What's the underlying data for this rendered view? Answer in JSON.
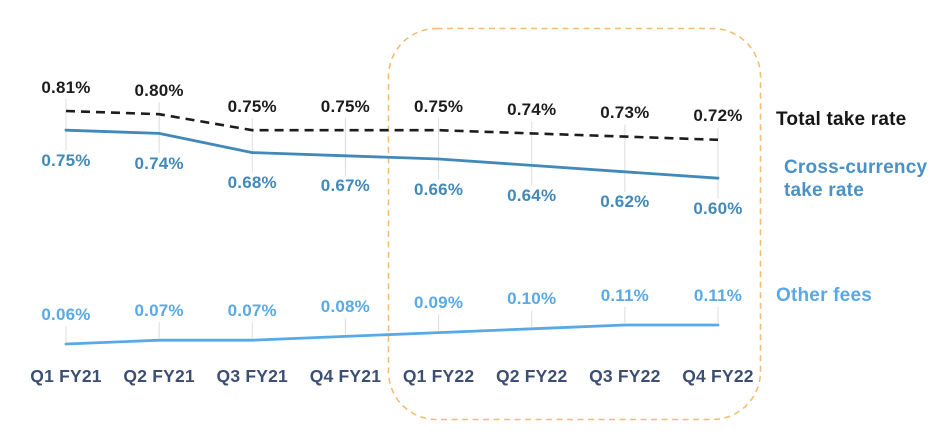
{
  "chart_data": {
    "type": "line",
    "title": "",
    "categories": [
      "Q1 FY21",
      "Q2 FY21",
      "Q3 FY21",
      "Q4 FY21",
      "Q1 FY22",
      "Q2 FY22",
      "Q3 FY22",
      "Q4 FY22"
    ],
    "series": [
      {
        "key": "total-take-rate",
        "name": "Total take rate",
        "values": [
          0.81,
          0.8,
          0.75,
          0.75,
          0.75,
          0.74,
          0.73,
          0.72
        ],
        "color": "#1c1c1c",
        "label_color": "#1c1c1c",
        "line_style": "dashed",
        "label_position": "above"
      },
      {
        "key": "cross-currency-take-rate",
        "name": "Cross-currency take rate",
        "values": [
          0.75,
          0.74,
          0.68,
          0.67,
          0.66,
          0.64,
          0.62,
          0.6
        ],
        "color": "#4189b9",
        "label_color": "#4189b9",
        "line_style": "solid",
        "label_position": "below"
      },
      {
        "key": "other-fees",
        "name": "Other fees",
        "values": [
          0.06,
          0.07,
          0.07,
          0.08,
          0.09,
          0.1,
          0.11,
          0.11
        ],
        "color": "#58a9e6",
        "label_color": "#58a9e6",
        "line_style": "solid",
        "label_position": "above"
      }
    ],
    "unit": "%",
    "value_format": "0.00%",
    "grid": false,
    "legend_position": "right",
    "annotations": [
      {
        "type": "highlight-box",
        "style": "dashed-rounded",
        "color": "#f3bd74",
        "covers": [
          "Q1 FY22",
          "Q2 FY22",
          "Q3 FY22",
          "Q4 FY22"
        ]
      }
    ]
  },
  "colors": {
    "background": "#ffffff",
    "x_axis_label": "#3d4e73",
    "tick": "#dcdcdc",
    "highlight_box": "#f3bd74"
  }
}
